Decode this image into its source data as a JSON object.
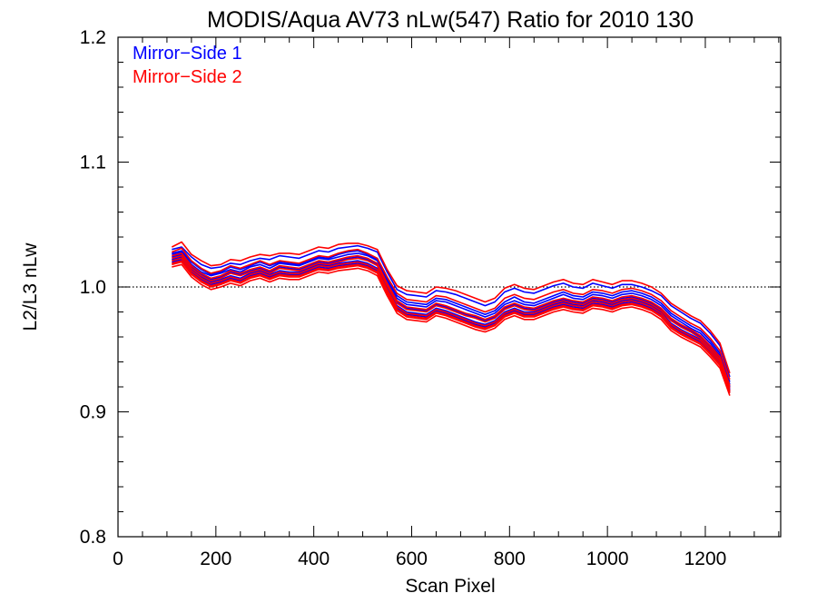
{
  "chart_data": {
    "type": "line",
    "title": "MODIS/Aqua AV73 nLw(547) Ratio for 2010 130",
    "xlabel": "Scan Pixel",
    "ylabel": "L2/L3 nLw",
    "xlim": [
      0,
      1354
    ],
    "ylim": [
      0.8,
      1.2
    ],
    "xticks": [
      0,
      200,
      400,
      600,
      800,
      1000,
      1200
    ],
    "xtick_labels": [
      "0",
      "200",
      "400",
      "600",
      "800",
      "1000",
      "1200"
    ],
    "yticks": [
      0.8,
      0.9,
      1.0,
      1.1,
      1.2
    ],
    "ytick_labels": [
      "0.8",
      "0.9",
      "1.0",
      "1.1",
      "1.2"
    ],
    "x_minor_step": 50,
    "y_minor_step": 0.02,
    "reference_line": {
      "y": 1.0,
      "style": "dotted"
    },
    "legend": {
      "position": "top-left",
      "entries": [
        {
          "label": "Mirror−Side 1",
          "color": "#0000ff"
        },
        {
          "label": "Mirror−Side 2",
          "color": "#ff0000"
        }
      ]
    },
    "x": [
      110,
      130,
      150,
      170,
      190,
      210,
      230,
      250,
      270,
      290,
      310,
      330,
      350,
      370,
      390,
      410,
      430,
      450,
      470,
      490,
      510,
      530,
      550,
      570,
      590,
      610,
      630,
      650,
      670,
      690,
      710,
      730,
      750,
      770,
      790,
      810,
      830,
      850,
      870,
      890,
      910,
      930,
      950,
      970,
      990,
      1010,
      1030,
      1050,
      1070,
      1090,
      1110,
      1130,
      1150,
      1170,
      1190,
      1210,
      1230,
      1250
    ],
    "series": [
      {
        "mirror_side": 1,
        "color": "#0000ff",
        "values": [
          1.03,
          1.032,
          1.024,
          1.018,
          1.015,
          1.016,
          1.019,
          1.018,
          1.021,
          1.023,
          1.022,
          1.025,
          1.024,
          1.023,
          1.026,
          1.029,
          1.028,
          1.031,
          1.032,
          1.033,
          1.031,
          1.028,
          1.012,
          0.998,
          0.994,
          0.993,
          0.992,
          0.997,
          0.996,
          0.994,
          0.991,
          0.988,
          0.985,
          0.988,
          0.996,
          0.999,
          0.996,
          0.995,
          0.998,
          1.001,
          1.003,
          1.0,
          0.999,
          1.003,
          1.001,
          0.999,
          1.002,
          1.002,
          1.0,
          0.997,
          0.993,
          0.985,
          0.98,
          0.975,
          0.971,
          0.963,
          0.953,
          0.928
        ]
      },
      {
        "mirror_side": 1,
        "color": "#0000ff",
        "values": [
          1.026,
          1.028,
          1.018,
          1.012,
          1.009,
          1.011,
          1.014,
          1.012,
          1.016,
          1.018,
          1.015,
          1.019,
          1.018,
          1.017,
          1.02,
          1.023,
          1.022,
          1.024,
          1.026,
          1.027,
          1.025,
          1.021,
          1.005,
          0.991,
          0.986,
          0.985,
          0.984,
          0.989,
          0.988,
          0.985,
          0.982,
          0.979,
          0.976,
          0.979,
          0.986,
          0.989,
          0.986,
          0.985,
          0.988,
          0.991,
          0.994,
          0.991,
          0.99,
          0.994,
          0.993,
          0.991,
          0.994,
          0.995,
          0.993,
          0.99,
          0.985,
          0.977,
          0.972,
          0.967,
          0.963,
          0.955,
          0.945,
          0.922
        ]
      },
      {
        "mirror_side": 1,
        "color": "#0000ff",
        "values": [
          1.022,
          1.024,
          1.014,
          1.008,
          1.004,
          1.006,
          1.009,
          1.007,
          1.011,
          1.013,
          1.01,
          1.013,
          1.012,
          1.012,
          1.015,
          1.018,
          1.017,
          1.019,
          1.02,
          1.021,
          1.019,
          1.015,
          0.999,
          0.985,
          0.98,
          0.979,
          0.978,
          0.983,
          0.981,
          0.978,
          0.975,
          0.972,
          0.97,
          0.973,
          0.98,
          0.983,
          0.98,
          0.98,
          0.983,
          0.986,
          0.988,
          0.986,
          0.985,
          0.989,
          0.988,
          0.986,
          0.989,
          0.99,
          0.988,
          0.985,
          0.98,
          0.971,
          0.966,
          0.962,
          0.958,
          0.95,
          0.941,
          0.918
        ]
      },
      {
        "mirror_side": 1,
        "color": "#0000ff",
        "values": [
          1.024,
          1.026,
          1.016,
          1.01,
          1.006,
          1.008,
          1.012,
          1.01,
          1.013,
          1.015,
          1.012,
          1.016,
          1.015,
          1.014,
          1.017,
          1.02,
          1.019,
          1.021,
          1.023,
          1.024,
          1.022,
          1.018,
          1.002,
          0.988,
          0.983,
          0.982,
          0.981,
          0.986,
          0.984,
          0.981,
          0.978,
          0.976,
          0.973,
          0.976,
          0.983,
          0.986,
          0.983,
          0.982,
          0.985,
          0.988,
          0.99,
          0.988,
          0.987,
          0.991,
          0.99,
          0.988,
          0.991,
          0.992,
          0.99,
          0.987,
          0.982,
          0.974,
          0.969,
          0.965,
          0.96,
          0.952,
          0.943,
          0.92
        ]
      },
      {
        "mirror_side": 1,
        "color": "#0000ff",
        "values": [
          1.02,
          1.022,
          1.012,
          1.006,
          1.002,
          1.004,
          1.007,
          1.005,
          1.009,
          1.011,
          1.008,
          1.011,
          1.01,
          1.01,
          1.013,
          1.016,
          1.015,
          1.017,
          1.018,
          1.019,
          1.017,
          1.013,
          0.997,
          0.983,
          0.978,
          0.977,
          0.976,
          0.981,
          0.979,
          0.976,
          0.973,
          0.97,
          0.968,
          0.971,
          0.978,
          0.981,
          0.978,
          0.978,
          0.981,
          0.984,
          0.986,
          0.984,
          0.983,
          0.987,
          0.986,
          0.984,
          0.987,
          0.988,
          0.986,
          0.983,
          0.978,
          0.969,
          0.964,
          0.96,
          0.956,
          0.948,
          0.939,
          0.916
        ]
      },
      {
        "mirror_side": 1,
        "color": "#0000ff",
        "values": [
          1.027,
          1.029,
          1.02,
          1.014,
          1.01,
          1.012,
          1.016,
          1.014,
          1.017,
          1.02,
          1.017,
          1.02,
          1.019,
          1.018,
          1.021,
          1.024,
          1.023,
          1.026,
          1.028,
          1.029,
          1.026,
          1.022,
          1.007,
          0.993,
          0.988,
          0.987,
          0.986,
          0.991,
          0.99,
          0.987,
          0.984,
          0.981,
          0.978,
          0.981,
          0.988,
          0.992,
          0.988,
          0.987,
          0.99,
          0.993,
          0.996,
          0.993,
          0.992,
          0.996,
          0.995,
          0.993,
          0.996,
          0.997,
          0.995,
          0.992,
          0.987,
          0.979,
          0.974,
          0.969,
          0.965,
          0.957,
          0.947,
          0.924
        ]
      },
      {
        "mirror_side": 2,
        "color": "#ff0000",
        "values": [
          1.032,
          1.036,
          1.026,
          1.021,
          1.017,
          1.018,
          1.022,
          1.021,
          1.024,
          1.026,
          1.025,
          1.027,
          1.027,
          1.026,
          1.029,
          1.032,
          1.031,
          1.034,
          1.035,
          1.035,
          1.033,
          1.03,
          1.014,
          1.001,
          0.997,
          0.996,
          0.995,
          1.0,
          0.999,
          0.997,
          0.994,
          0.991,
          0.988,
          0.991,
          0.999,
          1.002,
          0.999,
          0.998,
          1.001,
          1.004,
          1.006,
          1.003,
          1.002,
          1.006,
          1.004,
          1.002,
          1.005,
          1.005,
          1.003,
          1.0,
          0.995,
          0.987,
          0.982,
          0.977,
          0.973,
          0.965,
          0.955,
          0.931
        ]
      },
      {
        "mirror_side": 2,
        "color": "#ff0000",
        "values": [
          1.025,
          1.027,
          1.017,
          1.011,
          1.007,
          1.009,
          1.013,
          1.011,
          1.014,
          1.016,
          1.013,
          1.017,
          1.016,
          1.015,
          1.018,
          1.021,
          1.02,
          1.022,
          1.024,
          1.025,
          1.023,
          1.019,
          1.003,
          0.989,
          0.984,
          0.983,
          0.982,
          0.987,
          0.985,
          0.982,
          0.979,
          0.977,
          0.974,
          0.977,
          0.984,
          0.987,
          0.984,
          0.983,
          0.986,
          0.989,
          0.991,
          0.989,
          0.988,
          0.992,
          0.991,
          0.989,
          0.992,
          0.993,
          0.991,
          0.988,
          0.983,
          0.975,
          0.97,
          0.966,
          0.961,
          0.953,
          0.944,
          0.921
        ]
      },
      {
        "mirror_side": 2,
        "color": "#ff0000",
        "values": [
          1.021,
          1.023,
          1.013,
          1.007,
          1.003,
          1.005,
          1.008,
          1.006,
          1.01,
          1.012,
          1.009,
          1.012,
          1.011,
          1.011,
          1.014,
          1.017,
          1.016,
          1.018,
          1.019,
          1.02,
          1.018,
          1.014,
          0.998,
          0.984,
          0.979,
          0.978,
          0.977,
          0.982,
          0.98,
          0.977,
          0.974,
          0.971,
          0.969,
          0.972,
          0.979,
          0.982,
          0.979,
          0.979,
          0.982,
          0.985,
          0.987,
          0.985,
          0.984,
          0.988,
          0.987,
          0.985,
          0.988,
          0.989,
          0.987,
          0.984,
          0.979,
          0.97,
          0.965,
          0.961,
          0.957,
          0.949,
          0.94,
          0.917
        ]
      },
      {
        "mirror_side": 2,
        "color": "#ff0000",
        "values": [
          1.018,
          1.02,
          1.01,
          1.004,
          1.0,
          1.002,
          1.005,
          1.003,
          1.007,
          1.009,
          1.006,
          1.009,
          1.008,
          1.008,
          1.011,
          1.014,
          1.013,
          1.015,
          1.016,
          1.017,
          1.015,
          1.011,
          0.995,
          0.981,
          0.976,
          0.975,
          0.974,
          0.979,
          0.977,
          0.974,
          0.971,
          0.968,
          0.966,
          0.969,
          0.976,
          0.979,
          0.976,
          0.976,
          0.979,
          0.982,
          0.984,
          0.982,
          0.981,
          0.985,
          0.984,
          0.982,
          0.985,
          0.986,
          0.984,
          0.981,
          0.976,
          0.967,
          0.962,
          0.958,
          0.954,
          0.946,
          0.937,
          0.915
        ]
      },
      {
        "mirror_side": 2,
        "color": "#ff0000",
        "values": [
          1.023,
          1.025,
          1.015,
          1.009,
          1.005,
          1.007,
          1.011,
          1.009,
          1.012,
          1.014,
          1.011,
          1.015,
          1.014,
          1.013,
          1.016,
          1.019,
          1.018,
          1.02,
          1.022,
          1.023,
          1.021,
          1.017,
          1.001,
          0.987,
          0.982,
          0.981,
          0.98,
          0.985,
          0.983,
          0.98,
          0.977,
          0.975,
          0.972,
          0.975,
          0.982,
          0.985,
          0.982,
          0.981,
          0.984,
          0.987,
          0.989,
          0.987,
          0.986,
          0.99,
          0.989,
          0.987,
          0.99,
          0.991,
          0.989,
          0.986,
          0.981,
          0.973,
          0.968,
          0.964,
          0.959,
          0.951,
          0.942,
          0.919
        ]
      },
      {
        "mirror_side": 2,
        "color": "#ff0000",
        "values": [
          1.019,
          1.021,
          1.011,
          1.005,
          1.001,
          1.003,
          1.006,
          1.004,
          1.008,
          1.01,
          1.007,
          1.01,
          1.009,
          1.009,
          1.012,
          1.015,
          1.014,
          1.016,
          1.017,
          1.018,
          1.016,
          1.012,
          0.996,
          0.982,
          0.977,
          0.976,
          0.975,
          0.98,
          0.978,
          0.975,
          0.972,
          0.969,
          0.967,
          0.97,
          0.977,
          0.98,
          0.977,
          0.977,
          0.98,
          0.983,
          0.985,
          0.983,
          0.982,
          0.986,
          0.985,
          0.983,
          0.986,
          0.987,
          0.985,
          0.982,
          0.977,
          0.968,
          0.963,
          0.959,
          0.955,
          0.947,
          0.938,
          0.916
        ]
      },
      {
        "mirror_side": 2,
        "color": "#ff0000",
        "values": [
          1.028,
          1.031,
          1.021,
          1.015,
          1.011,
          1.013,
          1.017,
          1.015,
          1.018,
          1.021,
          1.018,
          1.021,
          1.02,
          1.019,
          1.022,
          1.025,
          1.024,
          1.027,
          1.029,
          1.03,
          1.027,
          1.023,
          1.008,
          0.995,
          0.99,
          0.989,
          0.988,
          0.993,
          0.992,
          0.989,
          0.986,
          0.983,
          0.98,
          0.983,
          0.991,
          0.994,
          0.991,
          0.99,
          0.993,
          0.996,
          0.998,
          0.995,
          0.994,
          0.998,
          0.997,
          0.995,
          0.998,
          0.999,
          0.997,
          0.994,
          0.989,
          0.981,
          0.976,
          0.971,
          0.967,
          0.959,
          0.949,
          0.926
        ]
      },
      {
        "mirror_side": 2,
        "color": "#ff0000",
        "values": [
          1.016,
          1.018,
          1.008,
          1.002,
          0.998,
          1.0,
          1.003,
          1.001,
          1.005,
          1.007,
          1.004,
          1.007,
          1.006,
          1.006,
          1.009,
          1.012,
          1.011,
          1.013,
          1.014,
          1.015,
          1.013,
          1.009,
          0.993,
          0.979,
          0.974,
          0.973,
          0.972,
          0.977,
          0.975,
          0.972,
          0.969,
          0.966,
          0.964,
          0.967,
          0.974,
          0.977,
          0.974,
          0.974,
          0.977,
          0.98,
          0.982,
          0.98,
          0.979,
          0.983,
          0.982,
          0.98,
          0.983,
          0.984,
          0.982,
          0.979,
          0.974,
          0.965,
          0.96,
          0.956,
          0.952,
          0.944,
          0.935,
          0.913
        ]
      }
    ]
  }
}
